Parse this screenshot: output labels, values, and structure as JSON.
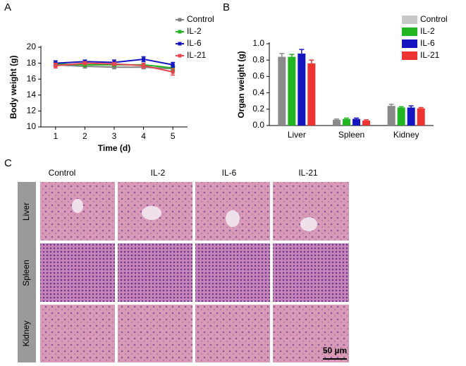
{
  "panel_labels": [
    "A",
    "B",
    "C"
  ],
  "chart_data": [
    {
      "type": "line",
      "x_label": "Time (d)",
      "y_label": "Body weight (g)",
      "x": [
        1,
        2,
        3,
        4,
        5
      ],
      "xlim": [
        0.5,
        5.5
      ],
      "xticks": [
        1,
        2,
        3,
        4,
        5
      ],
      "ylim": [
        10,
        20
      ],
      "yticks": [
        10,
        12,
        14,
        16,
        18,
        20
      ],
      "series": [
        {
          "name": "Control",
          "color": "#808080",
          "values": [
            17.8,
            17.6,
            17.5,
            17.5,
            17.3
          ],
          "errors": [
            0.2,
            0.2,
            0.2,
            0.2,
            0.3
          ]
        },
        {
          "name": "IL-2",
          "color": "#22b522",
          "values": [
            17.9,
            17.8,
            17.8,
            17.8,
            17.4
          ],
          "errors": [
            0.2,
            0.2,
            0.2,
            0.2,
            0.3
          ]
        },
        {
          "name": "IL-6",
          "color": "#1414c0",
          "values": [
            18.0,
            18.2,
            18.1,
            18.5,
            17.8
          ],
          "errors": [
            0.3,
            0.2,
            0.3,
            0.3,
            0.3
          ]
        },
        {
          "name": "IL-21",
          "color": "#e8454f",
          "values": [
            17.7,
            18.0,
            17.9,
            17.7,
            16.9
          ],
          "errors": [
            0.3,
            0.2,
            0.2,
            0.3,
            0.4
          ]
        }
      ]
    },
    {
      "type": "bar",
      "y_label": "Organ weight (g)",
      "categories": [
        "Liver",
        "Spleen",
        "Kidney"
      ],
      "ylim": [
        0,
        1
      ],
      "yticks": [
        {
          "value": 0,
          "label": "0.0"
        },
        0.2,
        0.4,
        0.6,
        0.8,
        {
          "value": 1,
          "label": "1.0"
        }
      ],
      "series": [
        {
          "name": "Control",
          "color": "#8a8a8a",
          "legend_color": "#c8c8c8",
          "values": [
            0.84,
            0.07,
            0.24
          ],
          "errors": [
            0.04,
            0.01,
            0.02
          ]
        },
        {
          "name": "IL-2",
          "color": "#22b522",
          "values": [
            0.84,
            0.08,
            0.22
          ],
          "errors": [
            0.03,
            0.01,
            0.01
          ]
        },
        {
          "name": "IL-6",
          "color": "#1414c0",
          "values": [
            0.88,
            0.08,
            0.22
          ],
          "errors": [
            0.05,
            0.01,
            0.02
          ]
        },
        {
          "name": "IL-21",
          "color": "#ee3333",
          "values": [
            0.76,
            0.06,
            0.21
          ],
          "errors": [
            0.04,
            0.01,
            0.01
          ]
        }
      ]
    }
  ],
  "histology": {
    "columns": [
      "Control",
      "IL-2",
      "IL-6",
      "IL-21"
    ],
    "rows": [
      "Liver",
      "Spleen",
      "Kidney"
    ],
    "scale_bar": "50 µm"
  }
}
